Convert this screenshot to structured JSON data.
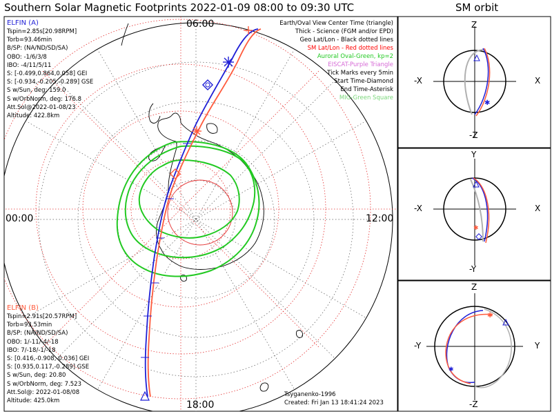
{
  "title": "Southern Solar Magnetic Footprints 2022-01-09 08:00 to 09:30 UTC",
  "orbit_title": "SM orbit",
  "map": {
    "time_labels": {
      "top": "06:00",
      "left": "00:00",
      "right": "12:00",
      "bottom": "18:00"
    }
  },
  "elfin_a": {
    "name": "ELFIN (A)",
    "color": "#1f1fd6",
    "lines": [
      "Tspin=2.85s[20.98RPM]",
      "Torb=93.46min",
      "B/SP: (NA/ND/SD/SA)",
      "OBO: -1/6/3/8",
      "IBO: -4/11/5/11",
      "S: [-0.499,0.864,0.058] GEI",
      "S: [-0.934,-0.205,-0.289] GSE",
      "S w/Sun, deg: 159.0",
      "S w/OrbNorm, deg: 176.8",
      "Att.Sol@2022-01-08/23",
      "Altitude: 422.8km"
    ]
  },
  "elfin_b": {
    "name": "ELFIN (B)",
    "color": "#ff5a3c",
    "lines": [
      "Tspin=2.91s[20.57RPM]",
      "Torb=93.53min",
      "B/SP: (NA/ND/SD/SA)",
      "OBO: 1/-11/-4/-18",
      "IBO: 7/-18/-1/-18",
      "S: [0.416,-0.908,-0.036] GEI",
      "S: [0.935,0.117,-0.289] GSE",
      "S w/Sun, deg: 20.80",
      "S w/OrbNorm, deg: 7.523",
      "Att.Sol@: 2022-01-08/08",
      "Altitude: 425.0km"
    ]
  },
  "legend": [
    {
      "text": "Earth/Oval View Center Time (triangle)",
      "color": "#000000"
    },
    {
      "text": "Thick - Science (FGM and/or EPD)",
      "color": "#000000"
    },
    {
      "text": "Geo Lat/Lon - Black dotted lines",
      "color": "#000000"
    },
    {
      "text": "SM Lat/Lon - Red dotted lines",
      "color": "#ff0000"
    },
    {
      "text": "Auroral Oval-Green, kp=2",
      "color": "#22c922"
    },
    {
      "text": "EISCAT-Purple Triangle",
      "color": "#d66ad6"
    },
    {
      "text": "Tick Marks every 5min",
      "color": "#000000"
    },
    {
      "text": "Start Time-Diamond",
      "color": "#000000"
    },
    {
      "text": "End Time-Asterisk",
      "color": "#000000"
    },
    {
      "text": "MIG-Green Square",
      "color": "#7ad67a"
    }
  ],
  "footer": {
    "model": "Tsyganenko-1996",
    "created": "Created: Fri Jan 13 18:41:24 2023"
  },
  "orbit_panels": [
    {
      "top": "Z",
      "bottom": "-Z",
      "left": "-X",
      "right": "X"
    },
    {
      "top": "Y",
      "bottom": "-Y",
      "left": "-X",
      "right": "X"
    },
    {
      "top": "Z",
      "bottom": "-Z",
      "left": "-Y",
      "right": "Y"
    }
  ]
}
